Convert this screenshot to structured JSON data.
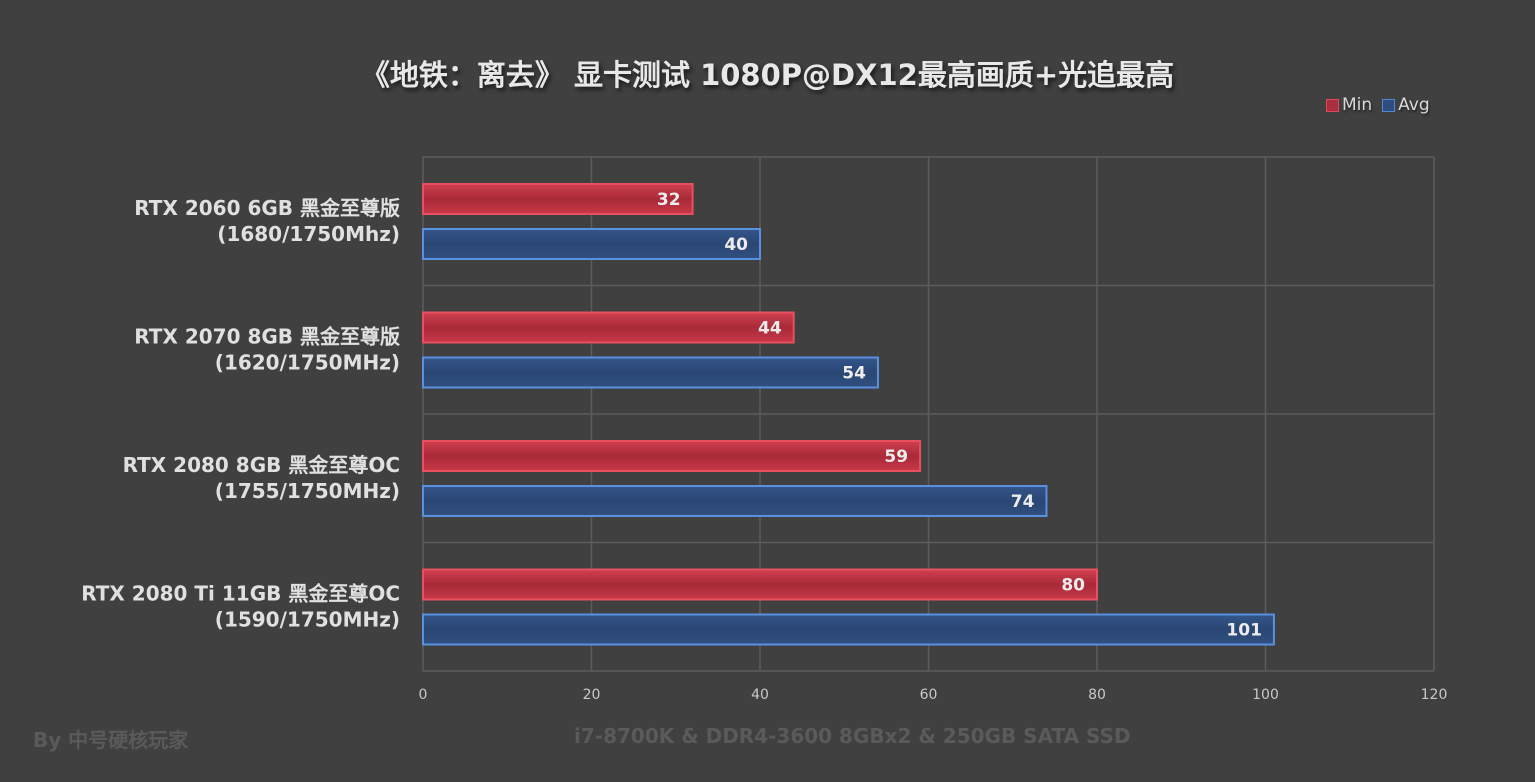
{
  "chart_data": {
    "type": "bar",
    "orientation": "horizontal",
    "title": "《地铁：离去》 显卡测试 1080P@DX12最高画质+光追最高",
    "categories": [
      [
        "RTX 2060 6GB 黑金至尊版",
        "(1680/1750Mhz)"
      ],
      [
        "RTX 2070 8GB 黑金至尊版",
        "(1620/1750MHz)"
      ],
      [
        "RTX 2080 8GB 黑金至尊OC",
        "(1755/1750MHz)"
      ],
      [
        "RTX 2080 Ti 11GB 黑金至尊OC",
        "(1590/1750MHz)"
      ]
    ],
    "series": [
      {
        "name": "Min",
        "color": "#c8303c",
        "values": [
          32,
          44,
          59,
          80
        ]
      },
      {
        "name": "Avg",
        "color": "#2e4c7c",
        "values": [
          40,
          54,
          74,
          101
        ]
      }
    ],
    "xlim": [
      0,
      120
    ],
    "xticks": [
      "0",
      "20",
      "40",
      "60",
      "80",
      "100",
      "120"
    ],
    "grid": true,
    "legend_position": "top-right"
  },
  "footer": {
    "author": "By 中号硬核玩家",
    "system": "i7-8700K & DDR4-3600 8GBx2 & 250GB SATA SSD"
  }
}
